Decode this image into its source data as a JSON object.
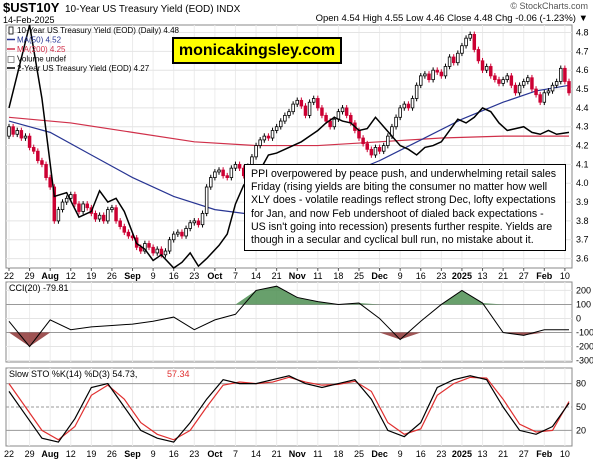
{
  "header": {
    "symbol": "$UST10Y",
    "name": "10-Year US Treasury Yield (EOD) INDX",
    "date": "14-Feb-2025",
    "brand": "© StockCharts.com",
    "ohlc_text": "Open 4.54  High 4.55  Low 4.46  Close 4.48  Chg -0.06 (-1.23%) ▼"
  },
  "watermark": "monicakingsley.com",
  "annotation": "PPI overpowered by peace push, and underwhelming retail sales Friday (rising yields are biting the consumer no matter how well XLY does - volatile readings reflect strong Dec, lofty expectations for Jan, and now Feb undershoot of dialed back expectations - US isn't going into recession) presents further respite. Yields are though in a secular and cyclical bull run, no mistake about it.",
  "colors": {
    "up": "#000000",
    "down": "#cc0033",
    "ma50": "#283593",
    "ma200": "#d0304a",
    "two_year": "#000000",
    "cci_pos": "#4e8f52",
    "cci_neg": "#8e3535",
    "sto_k": "#000000",
    "sto_d": "#e03030"
  },
  "chart_data": [
    {
      "type": "line",
      "panel": "price",
      "legend": [
        {
          "text": "10-Year US Treasury Yield (EOD) (Daily) 4.48",
          "marker": "candle"
        },
        {
          "text": "MA(50) 4.52",
          "marker": "line-blue"
        },
        {
          "text": "MA(200) 4.25",
          "marker": "line-red"
        },
        {
          "text": "Volume undef",
          "marker": "box"
        },
        {
          "text": "2-Year US Treasury Yield (EOD) 4.27",
          "marker": "line-black"
        }
      ],
      "y_ticks": [
        "4.8",
        "4.7",
        "4.6",
        "4.5",
        "4.4",
        "4.3",
        "4.2",
        "4.1",
        "4.0",
        "3.9",
        "3.8",
        "3.7",
        "3.6"
      ],
      "ylim": [
        3.55,
        4.84
      ],
      "x_labels": [
        "22",
        "29",
        "Aug",
        "12",
        "19",
        "26",
        "Sep",
        "9",
        "16",
        "23",
        "Oct",
        "7",
        "14",
        "21",
        "Nov",
        "11",
        "18",
        "25",
        "Dec",
        "9",
        "16",
        "23",
        "2025",
        "13",
        "21",
        "27",
        "Feb",
        "10"
      ],
      "x_label_bold": [
        "Aug",
        "Sep",
        "Oct",
        "Nov",
        "Dec",
        "2025",
        "Feb"
      ],
      "candles": [
        [
          4.25,
          4.3
        ],
        [
          4.3,
          4.26
        ],
        [
          4.26,
          4.28
        ],
        [
          4.28,
          4.24
        ],
        [
          4.24,
          4.25
        ],
        [
          4.25,
          4.19
        ],
        [
          4.19,
          4.17
        ],
        [
          4.17,
          4.12
        ],
        [
          4.12,
          4.1
        ],
        [
          4.1,
          4.03
        ],
        [
          4.03,
          3.98
        ],
        [
          3.98,
          3.8
        ],
        [
          3.8,
          3.86
        ],
        [
          3.86,
          3.9
        ],
        [
          3.9,
          3.92
        ],
        [
          3.92,
          3.94
        ],
        [
          3.94,
          3.89
        ],
        [
          3.89,
          3.85
        ],
        [
          3.85,
          3.89
        ],
        [
          3.89,
          3.87
        ],
        [
          3.87,
          3.84
        ],
        [
          3.84,
          3.81
        ],
        [
          3.81,
          3.83
        ],
        [
          3.83,
          3.8
        ],
        [
          3.8,
          3.86
        ],
        [
          3.86,
          3.87
        ],
        [
          3.87,
          3.8
        ],
        [
          3.8,
          3.77
        ],
        [
          3.77,
          3.74
        ],
        [
          3.74,
          3.72
        ],
        [
          3.72,
          3.71
        ],
        [
          3.71,
          3.66
        ],
        [
          3.66,
          3.64
        ],
        [
          3.64,
          3.68
        ],
        [
          3.68,
          3.66
        ],
        [
          3.66,
          3.63
        ],
        [
          3.63,
          3.65
        ],
        [
          3.65,
          3.62
        ],
        [
          3.62,
          3.64
        ],
        [
          3.64,
          3.7
        ],
        [
          3.7,
          3.73
        ],
        [
          3.73,
          3.74
        ],
        [
          3.74,
          3.72
        ],
        [
          3.72,
          3.76
        ],
        [
          3.76,
          3.79
        ],
        [
          3.79,
          3.8
        ],
        [
          3.8,
          3.78
        ],
        [
          3.78,
          3.84
        ],
        [
          3.84,
          3.98
        ],
        [
          3.98,
          4.03
        ],
        [
          4.03,
          4.06
        ],
        [
          4.06,
          4.07
        ],
        [
          4.07,
          4.04
        ],
        [
          4.04,
          4.03
        ],
        [
          4.03,
          4.08
        ],
        [
          4.08,
          4.1
        ],
        [
          4.1,
          4.08
        ],
        [
          4.08,
          4.04
        ],
        [
          4.04,
          4.09
        ],
        [
          4.09,
          4.14
        ],
        [
          4.14,
          4.2
        ],
        [
          4.2,
          4.23
        ],
        [
          4.23,
          4.25
        ],
        [
          4.25,
          4.24
        ],
        [
          4.24,
          4.28
        ],
        [
          4.28,
          4.3
        ],
        [
          4.3,
          4.33
        ],
        [
          4.33,
          4.36
        ],
        [
          4.36,
          4.38
        ],
        [
          4.38,
          4.42
        ],
        [
          4.42,
          4.44
        ],
        [
          4.44,
          4.41
        ],
        [
          4.41,
          4.36
        ],
        [
          4.36,
          4.43
        ],
        [
          4.43,
          4.45
        ],
        [
          4.45,
          4.4
        ],
        [
          4.4,
          4.36
        ],
        [
          4.36,
          4.33
        ],
        [
          4.33,
          4.3
        ],
        [
          4.3,
          4.34
        ],
        [
          4.34,
          4.38
        ],
        [
          4.38,
          4.4
        ],
        [
          4.4,
          4.36
        ],
        [
          4.36,
          4.32
        ],
        [
          4.32,
          4.28
        ],
        [
          4.28,
          4.24
        ],
        [
          4.24,
          4.21
        ],
        [
          4.21,
          4.18
        ],
        [
          4.18,
          4.15
        ],
        [
          4.15,
          4.19
        ],
        [
          4.19,
          4.17
        ],
        [
          4.17,
          4.2
        ],
        [
          4.2,
          4.25
        ],
        [
          4.25,
          4.3
        ],
        [
          4.3,
          4.35
        ],
        [
          4.35,
          4.4
        ],
        [
          4.4,
          4.42
        ],
        [
          4.42,
          4.4
        ],
        [
          4.4,
          4.45
        ],
        [
          4.45,
          4.52
        ],
        [
          4.52,
          4.57
        ],
        [
          4.57,
          4.58
        ],
        [
          4.58,
          4.55
        ],
        [
          4.55,
          4.6
        ],
        [
          4.6,
          4.59
        ],
        [
          4.59,
          4.57
        ],
        [
          4.57,
          4.62
        ],
        [
          4.62,
          4.67
        ],
        [
          4.67,
          4.64
        ],
        [
          4.64,
          4.69
        ],
        [
          4.69,
          4.73
        ],
        [
          4.73,
          4.77
        ],
        [
          4.77,
          4.79
        ],
        [
          4.79,
          4.71
        ],
        [
          4.71,
          4.65
        ],
        [
          4.65,
          4.6
        ],
        [
          4.6,
          4.62
        ],
        [
          4.62,
          4.57
        ],
        [
          4.57,
          4.55
        ],
        [
          4.55,
          4.53
        ],
        [
          4.53,
          4.55
        ],
        [
          4.55,
          4.57
        ],
        [
          4.57,
          4.52
        ],
        [
          4.52,
          4.48
        ],
        [
          4.48,
          4.52
        ],
        [
          4.52,
          4.54
        ],
        [
          4.54,
          4.56
        ],
        [
          4.56,
          4.5
        ],
        [
          4.5,
          4.47
        ],
        [
          4.47,
          4.43
        ],
        [
          4.43,
          4.48
        ],
        [
          4.48,
          4.49
        ],
        [
          4.49,
          4.52
        ],
        [
          4.52,
          4.54
        ],
        [
          4.54,
          4.61
        ],
        [
          4.61,
          4.54
        ],
        [
          4.54,
          4.48
        ]
      ],
      "series": [
        {
          "kind": "ma50",
          "values": [
            [
              0,
              4.33
            ],
            [
              10,
              4.27
            ],
            [
              20,
              4.15
            ],
            [
              30,
              4.03
            ],
            [
              40,
              3.93
            ],
            [
              50,
              3.86
            ],
            [
              57,
              3.84
            ],
            [
              62,
              3.86
            ],
            [
              70,
              3.92
            ],
            [
              80,
              4.03
            ],
            [
              90,
              4.12
            ],
            [
              100,
              4.23
            ],
            [
              110,
              4.34
            ],
            [
              120,
              4.43
            ],
            [
              128,
              4.49
            ],
            [
              136,
              4.52
            ]
          ]
        },
        {
          "kind": "ma200",
          "values": [
            [
              0,
              4.35
            ],
            [
              15,
              4.32
            ],
            [
              30,
              4.27
            ],
            [
              45,
              4.22
            ],
            [
              60,
              4.2
            ],
            [
              75,
              4.2
            ],
            [
              90,
              4.22
            ],
            [
              105,
              4.24
            ],
            [
              120,
              4.25
            ],
            [
              136,
              4.25
            ]
          ]
        },
        {
          "kind": "two_year",
          "values": [
            [
              0,
              4.4
            ],
            [
              5,
              4.85
            ],
            [
              8,
              4.45
            ],
            [
              11,
              3.93
            ],
            [
              14,
              3.95
            ],
            [
              17,
              3.82
            ],
            [
              20,
              3.85
            ],
            [
              22,
              3.96
            ],
            [
              24,
              3.9
            ],
            [
              26,
              3.92
            ],
            [
              28,
              3.85
            ],
            [
              31,
              3.68
            ],
            [
              33,
              3.65
            ],
            [
              35,
              3.59
            ],
            [
              37,
              3.62
            ],
            [
              40,
              3.55
            ],
            [
              42,
              3.58
            ],
            [
              44,
              3.63
            ],
            [
              46,
              3.56
            ],
            [
              48,
              3.6
            ],
            [
              51,
              3.67
            ],
            [
              53,
              3.73
            ],
            [
              55,
              3.89
            ],
            [
              57,
              3.99
            ],
            [
              59,
              4.03
            ],
            [
              61,
              4.07
            ],
            [
              63,
              4.15
            ],
            [
              65,
              4.16
            ],
            [
              67,
              4.18
            ],
            [
              69,
              4.2
            ],
            [
              71,
              4.22
            ],
            [
              73,
              4.25
            ],
            [
              75,
              4.28
            ],
            [
              77,
              4.32
            ],
            [
              79,
              4.35
            ],
            [
              81,
              4.33
            ],
            [
              83,
              4.32
            ],
            [
              85,
              4.28
            ],
            [
              87,
              4.29
            ],
            [
              89,
              4.35
            ],
            [
              91,
              4.3
            ],
            [
              93,
              4.25
            ],
            [
              95,
              4.2
            ],
            [
              97,
              4.18
            ],
            [
              99,
              4.15
            ],
            [
              101,
              4.19
            ],
            [
              103,
              4.2
            ],
            [
              105,
              4.22
            ],
            [
              107,
              4.28
            ],
            [
              109,
              4.34
            ],
            [
              111,
              4.32
            ],
            [
              113,
              4.35
            ],
            [
              115,
              4.4
            ],
            [
              117,
              4.38
            ],
            [
              119,
              4.32
            ],
            [
              121,
              4.28
            ],
            [
              123,
              4.29
            ],
            [
              125,
              4.3
            ],
            [
              127,
              4.27
            ],
            [
              129,
              4.26
            ],
            [
              131,
              4.28
            ],
            [
              133,
              4.26
            ],
            [
              136,
              4.27
            ]
          ]
        }
      ]
    },
    {
      "type": "area",
      "panel": "cci",
      "legend": "CCI(20) -79.81",
      "y_ticks": [
        "200",
        "100",
        "0",
        "-100",
        "-200",
        "-300"
      ],
      "ylim": [
        -310,
        260
      ],
      "x": [
        0,
        5,
        10,
        15,
        20,
        25,
        30,
        35,
        40,
        45,
        50,
        55,
        60,
        65,
        70,
        75,
        80,
        85,
        90,
        95,
        100,
        105,
        110,
        115,
        120,
        125,
        130,
        136
      ],
      "values": [
        -20,
        -200,
        -10,
        -80,
        -60,
        -50,
        -40,
        -20,
        10,
        -80,
        -10,
        30,
        200,
        230,
        150,
        120,
        100,
        110,
        0,
        -150,
        -20,
        100,
        200,
        110,
        -100,
        -120,
        -80,
        -80
      ]
    },
    {
      "type": "line",
      "panel": "stochastic",
      "legend_k": "Slow STO %K(14) %D(3) 54.73,",
      "legend_d": "57.34",
      "y_ticks": [
        "80",
        "50",
        "20"
      ],
      "ylim": [
        0,
        100
      ],
      "x_labels": [
        "22",
        "29",
        "Aug",
        "12",
        "19",
        "26",
        "Sep",
        "9",
        "16",
        "23",
        "Oct",
        "7",
        "14",
        "21",
        "Nov",
        "11",
        "18",
        "25",
        "Dec",
        "9",
        "16",
        "23",
        "2025",
        "13",
        "21",
        "27",
        "Feb",
        "10"
      ],
      "x": [
        0,
        4,
        8,
        12,
        16,
        20,
        24,
        28,
        32,
        36,
        40,
        44,
        48,
        52,
        56,
        60,
        64,
        68,
        72,
        76,
        80,
        84,
        88,
        92,
        96,
        100,
        104,
        108,
        112,
        116,
        120,
        124,
        128,
        132,
        136
      ],
      "series": [
        {
          "name": "%K",
          "values": [
            70,
            40,
            10,
            5,
            35,
            75,
            80,
            50,
            20,
            10,
            5,
            30,
            60,
            85,
            80,
            80,
            85,
            90,
            80,
            75,
            80,
            85,
            60,
            20,
            12,
            30,
            75,
            85,
            90,
            85,
            50,
            20,
            15,
            25,
            55
          ]
        },
        {
          "name": "%D",
          "values": [
            80,
            50,
            20,
            8,
            25,
            65,
            78,
            60,
            30,
            15,
            8,
            20,
            50,
            78,
            82,
            80,
            82,
            88,
            82,
            78,
            79,
            83,
            70,
            30,
            15,
            22,
            65,
            80,
            88,
            87,
            60,
            28,
            18,
            20,
            57
          ]
        }
      ]
    }
  ]
}
